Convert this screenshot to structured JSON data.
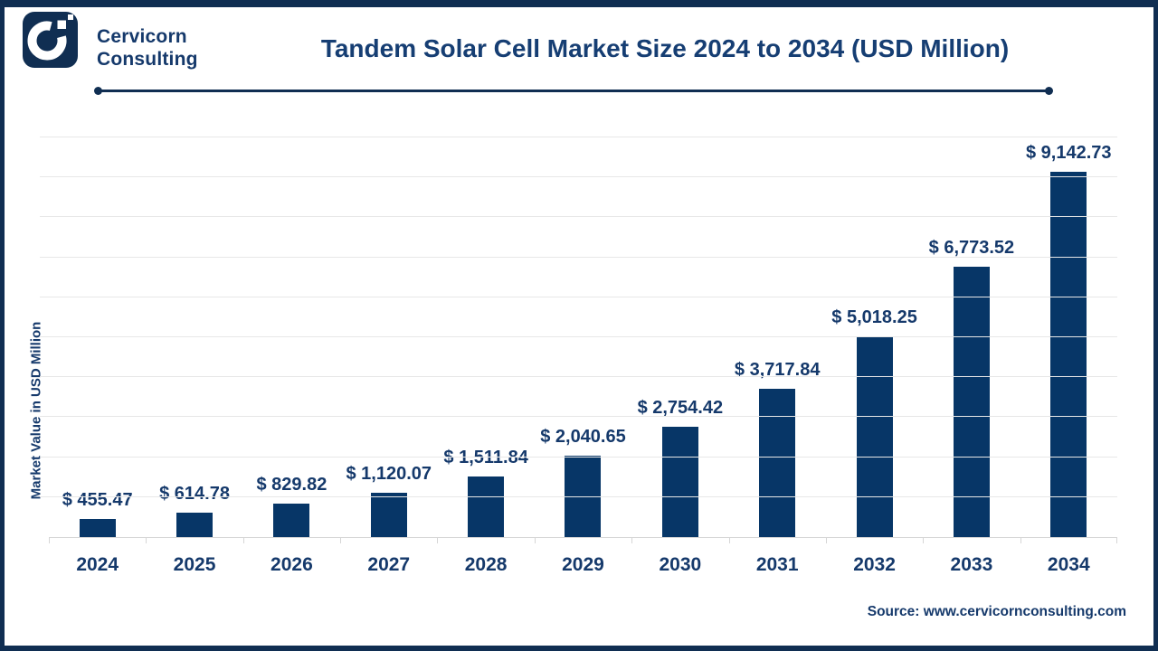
{
  "colors": {
    "navy_text": "#15396B",
    "bar": "#073667",
    "frame": "#102E52",
    "gridline": "#E7E7E7",
    "axis_line": "#D6D6D6"
  },
  "header": {
    "brand_line1": "Cervicorn",
    "brand_line2": "Consulting",
    "title": "Tandem Solar Cell Market Size 2024 to 2034 (USD Million)"
  },
  "chart_data": {
    "type": "bar",
    "title": "Tandem Solar Cell Market Size 2024 to 2034 (USD Million)",
    "categories": [
      "2024",
      "2025",
      "2026",
      "2027",
      "2028",
      "2029",
      "2030",
      "2031",
      "2032",
      "2033",
      "2034"
    ],
    "values": [
      455.47,
      614.78,
      829.82,
      1120.07,
      1511.84,
      2040.65,
      2754.42,
      3717.84,
      5018.25,
      6773.52,
      9142.73
    ],
    "value_labels": [
      "$ 455.47",
      "$ 614.78",
      "$ 829.82",
      "$ 1,120.07",
      "$ 1,511.84",
      "$ 2,040.65",
      "$ 2,754.42",
      "$ 3,717.84",
      "$ 5,018.25",
      "$ 6,773.52",
      "$ 9,142.73"
    ],
    "xlabel": "",
    "ylabel": "Market Value in USD Million",
    "ylim": [
      0,
      10000
    ],
    "gridline_step": 1000,
    "grid": true,
    "legend_position": "none",
    "bar_color": "#073667"
  },
  "footer": {
    "source": "Source: www.cervicornconsulting.com"
  }
}
